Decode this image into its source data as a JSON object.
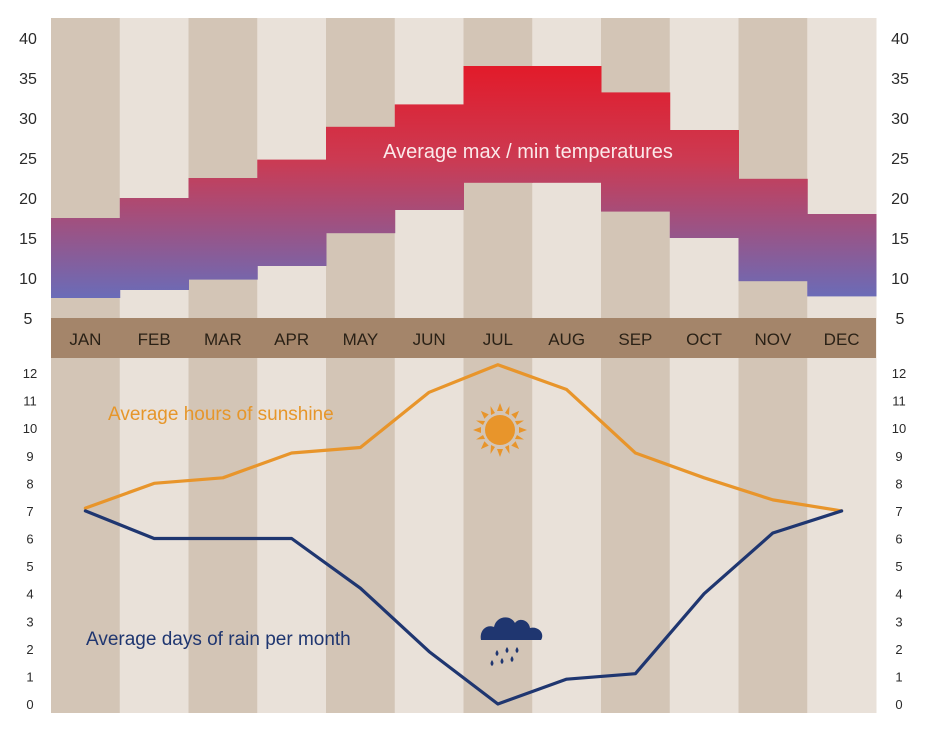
{
  "chart_data": [
    {
      "type": "bar",
      "title": "Average max / min temperatures",
      "categories": [
        "JAN",
        "FEB",
        "MAR",
        "APR",
        "MAY",
        "JUN",
        "JUL",
        "AUG",
        "SEP",
        "OCT",
        "NOV",
        "DEC"
      ],
      "series": [
        {
          "name": "max",
          "values": [
            17.5,
            20,
            22.5,
            24.8,
            28.9,
            31.7,
            36.5,
            36.5,
            33.2,
            28.5,
            22.4,
            18
          ]
        },
        {
          "name": "min",
          "values": [
            7.5,
            8.5,
            9.8,
            11.5,
            15.6,
            18.5,
            21.9,
            21.9,
            18.3,
            15,
            9.6,
            7.7
          ]
        }
      ],
      "yticks": [
        "5",
        "10",
        "15",
        "20",
        "25",
        "30",
        "35",
        "40"
      ],
      "ylim": [
        5,
        40
      ],
      "colors": {
        "warm": "#e21b2a",
        "cool": "#6a6cb8"
      }
    },
    {
      "type": "line",
      "categories": [
        "JAN",
        "FEB",
        "MAR",
        "APR",
        "MAY",
        "JUN",
        "JUL",
        "AUG",
        "SEP",
        "OCT",
        "NOV",
        "DEC"
      ],
      "series": [
        {
          "name": "Average hours of sunshine",
          "values": [
            7.1,
            8,
            8.2,
            9.1,
            9.3,
            11.3,
            12.3,
            11.4,
            9.1,
            8.2,
            7.4,
            7
          ],
          "color": "#e8952b",
          "icon": "sun-icon"
        },
        {
          "name": "Average days of rain per month",
          "values": [
            7,
            6,
            6,
            6,
            4.2,
            1.9,
            0,
            0.9,
            1.1,
            4,
            6.2,
            7
          ],
          "color": "#1f3670",
          "icon": "rain-cloud-icon"
        }
      ],
      "yticks": [
        "0",
        "1",
        "2",
        "3",
        "4",
        "5",
        "6",
        "7",
        "8",
        "9",
        "10",
        "11",
        "12"
      ],
      "ylim": [
        0,
        12
      ]
    }
  ],
  "colors": {
    "band_dark": "#d3c5b6",
    "band_light": "#e9e1d9",
    "month_strip": "#a4856a"
  }
}
